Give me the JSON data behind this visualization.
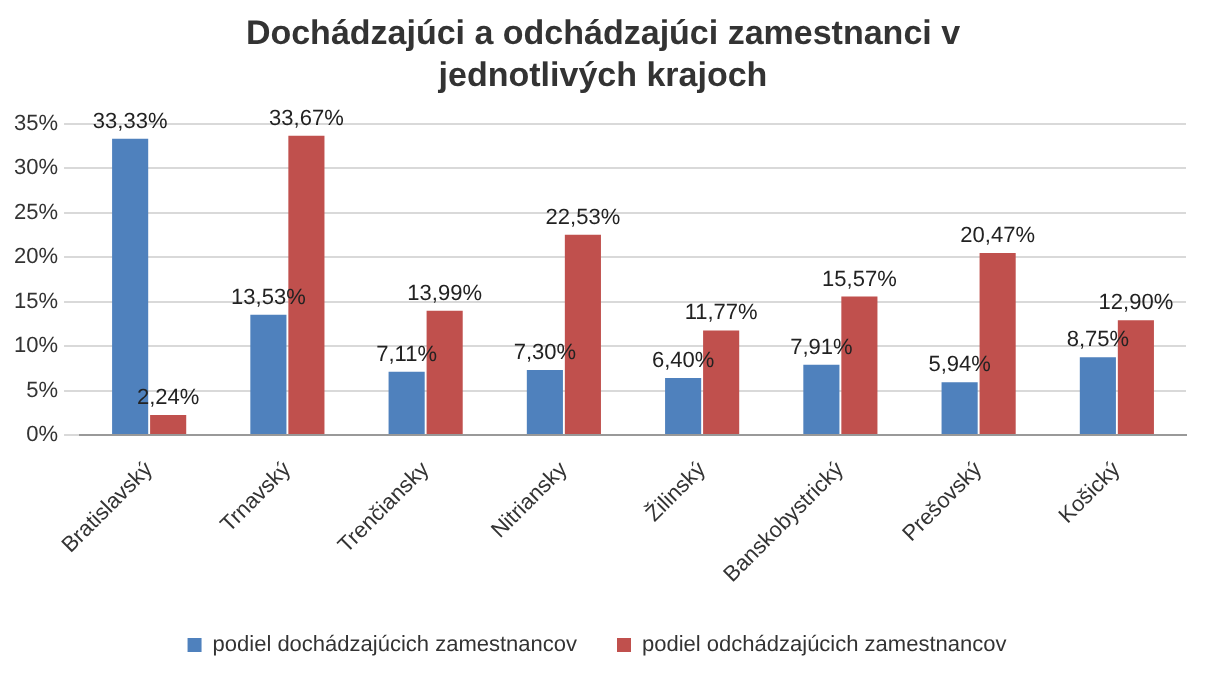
{
  "chart_data": {
    "type": "bar",
    "title": "Dochádzajúci a odchádzajúci zamestnanci v jednotlivých krajoch",
    "categories": [
      "Bratislavský",
      "Trnavský",
      "Trenčiansky",
      "Nitriansky",
      "Žilinský",
      "Banskobystrický",
      "Prešovský",
      "Košický"
    ],
    "series": [
      {
        "name": "podiel dochádzajúcich zamestnancov",
        "color": "#4f81bd",
        "values": [
          33.33,
          13.53,
          7.11,
          7.3,
          6.4,
          7.91,
          5.94,
          8.75
        ],
        "value_labels": [
          "33,33%",
          "13,53%",
          "7,11%",
          "7,30%",
          "6,40%",
          "7,91%",
          "5,94%",
          "8,75%"
        ]
      },
      {
        "name": "podiel odchádzajúcich zamestnancov",
        "color": "#c0504d",
        "values": [
          2.24,
          33.67,
          13.99,
          22.53,
          11.77,
          15.57,
          20.47,
          12.9
        ],
        "value_labels": [
          "2,24%",
          "33,67%",
          "13,99%",
          "22,53%",
          "11,77%",
          "15,57%",
          "20,47%",
          "12,90%"
        ]
      }
    ],
    "ylim": [
      0,
      35
    ],
    "yticks": [
      {
        "value": 0,
        "label": "0%"
      },
      {
        "value": 5,
        "label": "5%"
      },
      {
        "value": 10,
        "label": "10%"
      },
      {
        "value": 15,
        "label": "15%"
      },
      {
        "value": 20,
        "label": "20%"
      },
      {
        "value": 25,
        "label": "25%"
      },
      {
        "value": 30,
        "label": "30%"
      },
      {
        "value": 35,
        "label": "35%"
      }
    ],
    "grid": "y",
    "legend": "bottom"
  }
}
